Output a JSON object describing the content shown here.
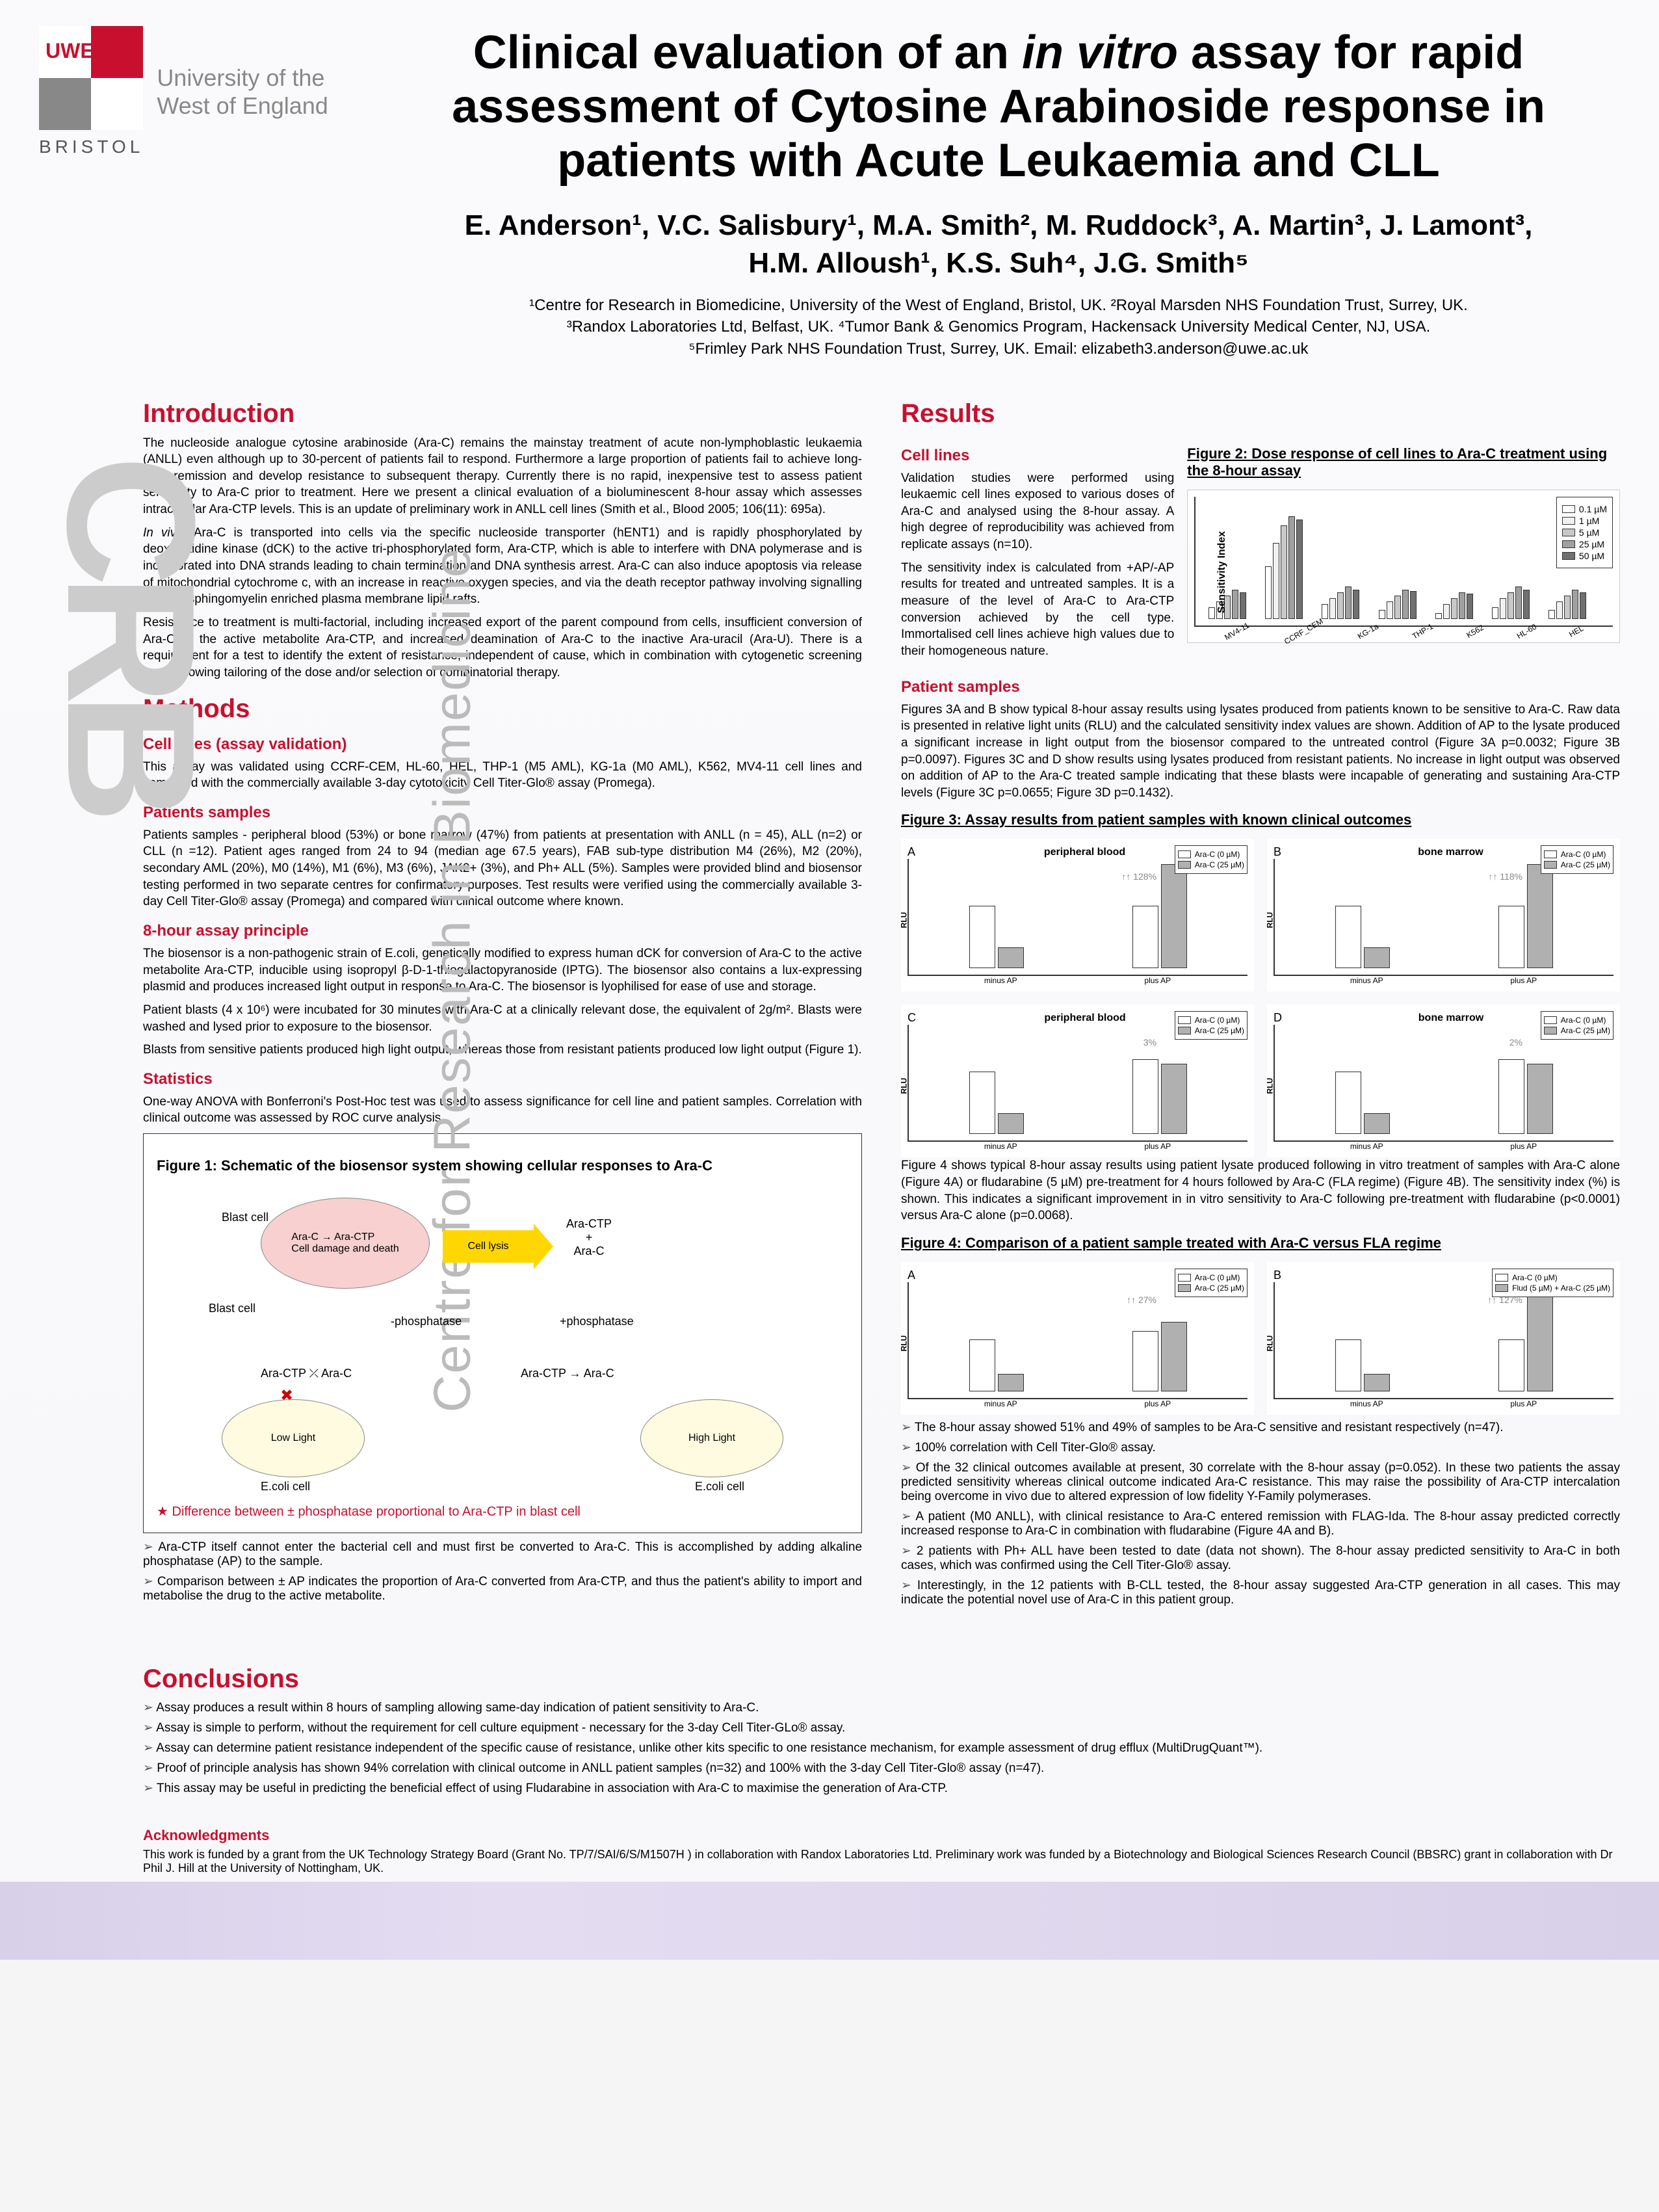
{
  "logo": {
    "uwe": "UWE",
    "bristol": "BRISTOL",
    "uni": "University of the\nWest of England"
  },
  "title_pre": "Clinical evaluation of an ",
  "title_italic": "in vitro",
  "title_post": " assay for rapid assessment of Cytosine Arabinoside response in patients with Acute Leukaemia and CLL",
  "authors_line1": "E. Anderson¹, V.C. Salisbury¹, M.A. Smith², M. Ruddock³, A. Martin³, J. Lamont³,",
  "authors_line2": "H.M. Alloush¹, K.S. Suh⁴, J.G. Smith⁵",
  "affiliations": "¹Centre for Research in Biomedicine, University of the West of England, Bristol, UK. ²Royal Marsden NHS Foundation Trust, Surrey, UK.\n³Randox Laboratories Ltd, Belfast, UK. ⁴Tumor Bank & Genomics Program, Hackensack University Medical Center, NJ, USA.\n⁵Frimley Park NHS Foundation Trust, Surrey, UK. Email: elizabeth3.anderson@uwe.ac.uk",
  "side_label": "Centre for Research in Biomedicine",
  "crb_label": "CRB",
  "sections": {
    "intro_title": "Introduction",
    "intro_p1": "The nucleoside analogue cytosine arabinoside (Ara-C) remains the mainstay treatment of acute non-lymphoblastic leukaemia (ANLL) even although up to 30-percent of patients fail to respond. Furthermore a large proportion of patients fail to achieve long-term remission and develop resistance to subsequent therapy. Currently there is no rapid, inexpensive test to assess patient sensitivity to Ara-C prior to treatment. Here we present a clinical evaluation of a bioluminescent 8-hour assay which assesses intracellular Ara-CTP levels. This is an update of preliminary work in ANLL cell lines (Smith et al., Blood 2005; 106(11): 695a).",
    "intro_p2_pre": "",
    "intro_p2_italic": "In vivo",
    "intro_p2_post": ", Ara-C is transported into cells via the specific nucleoside transporter (hENT1) and is rapidly phosphorylated by deoxycytidine kinase (dCK) to the active tri-phosphorylated form, Ara-CTP, which is able to interfere with DNA polymerase and is incorporated into DNA strands leading to chain termination and DNA synthesis arrest. Ara-C can also induce apoptosis via release of mitochondrial cytochrome c, with an increase in reactive oxygen species, and via the death receptor pathway involving signalling through sphingomyelin enriched plasma membrane lipid rafts.",
    "intro_p3": "Resistance to treatment is multi-factorial, including increased export of the parent compound from cells, insufficient conversion of Ara-C to the active metabolite Ara-CTP, and increased deamination of Ara-C to the inactive Ara-uracil (Ara-U). There is a requirement for a test to identify the extent of resistance, independent of cause, which in combination with cytogenetic screening could allowing tailoring of the dose and/or selection of combinatorial therapy.",
    "methods_title": "Methods",
    "methods_sub1": "Cell lines (assay validation)",
    "methods_p1": "This assay was validated using CCRF-CEM, HL-60, HEL, THP-1 (M5 AML), KG-1a (M0 AML), K562, MV4-11 cell lines and compared with the commercially available 3-day cytotoxicity Cell Titer-Glo® assay (Promega).",
    "methods_sub2": "Patients samples",
    "methods_p2": "Patients samples - peripheral blood (53%) or bone marrow (47%) from patients at presentation with ANLL (n = 45), ALL (n=2) or CLL (n =12). Patient ages ranged from 24 to 94 (median age 67.5 years), FAB sub-type distribution M4 (26%), M2 (20%), secondary AML (20%), M0 (14%), M1 (6%), M3 (6%), JAK2+ (3%), and Ph+ ALL (5%). Samples were provided blind and biosensor testing performed in two separate centres for confirmatory purposes. Test results were verified using the commercially available 3-day Cell Titer-Glo® assay (Promega) and compared with clinical outcome where known.",
    "methods_sub3": "8-hour assay principle",
    "methods_p3": "The biosensor is a non-pathogenic strain of E.coli, genetically modified to express human dCK for conversion of Ara-C to the active metabolite Ara-CTP, inducible using isopropyl β-D-1-thiogalactopyranoside (IPTG). The biosensor also contains a lux-expressing plasmid and produces increased light output in response to Ara-C. The biosensor is lyophilised for ease of use and storage.",
    "methods_p4": "Patient blasts (4 x 10⁶) were incubated for 30 minutes with Ara-C at a clinically relevant dose, the equivalent of 2g/m². Blasts were washed and lysed prior to exposure to the biosensor.",
    "methods_p5": "Blasts from sensitive patients produced high light output, whereas those from resistant patients produced low light output (Figure 1).",
    "methods_sub4": "Statistics",
    "methods_p6": "One-way ANOVA with Bonferroni's Post-Hoc test was used to assess significance for cell line and patient samples. Correlation with clinical outcome was assessed by ROC curve analysis.",
    "fig1_title": "Figure 1: Schematic of the biosensor system showing cellular responses to Ara-C",
    "fig1_blast": "Ara-C → Ara-CTP\nCell damage and death",
    "fig1_blast_label": "Blast cell",
    "fig1_lysis": "Cell lysis",
    "fig1_arac_ctp": "Ara-CTP\n+\nAra-C",
    "fig1_phos": "+phosphatase",
    "fig1_minusphos": "-phosphatase",
    "fig1_aractp_arac": "Ara-CTP ⤫ Ara-C",
    "fig1_aractp_arac2": "Ara-CTP → Ara-C",
    "fig1_low": "Low Light",
    "fig1_high": "High Light",
    "fig1_ecoli": "E.coli cell",
    "fig1_star": "Difference between ± phosphatase proportional to Ara-CTP in blast cell",
    "fig1_note1": "Ara-CTP itself cannot enter the bacterial cell and must first be converted to Ara-C. This is accomplished by adding alkaline phosphatase (AP) to the sample.",
    "fig1_note2": "Comparison between ± AP indicates the proportion of Ara-C converted from Ara-CTP, and thus the patient's ability to import and metabolise the drug to the active metabolite.",
    "results_title": "Results",
    "results_sub1": "Cell lines",
    "results_p1": "Validation studies were performed using leukaemic cell lines exposed to various doses of Ara-C and analysed using the 8-hour assay. A high degree of reproducibility was achieved from replicate assays (n=10).",
    "results_p2": "The sensitivity index is calculated from +AP/-AP results for treated and untreated samples. It is a measure of the level of Ara-C to Ara-CTP conversion achieved by the cell type. Immortalised cell lines achieve high values due to their homogeneous nature.",
    "fig2_title": "Figure 2: Dose response of cell lines to Ara-C treatment using the 8-hour assay",
    "fig2_ylabel": "Sensitivity Index",
    "fig2_ymax": 400,
    "fig2_ytick": 100,
    "fig2_x": [
      "MV4-11",
      "CCRF_CEM",
      "KG-1a",
      "THP-1",
      "K562",
      "HL-60",
      "HEL"
    ],
    "fig2_doses": [
      "0.1 µM",
      "1 µM",
      "5 µM",
      "25 µM",
      "50 µM"
    ],
    "fig2_colors": [
      "#ffffff",
      "#f0f0f0",
      "#c8c8c8",
      "#a0a0a0",
      "#707070"
    ],
    "fig2_data": [
      [
        40,
        60,
        80,
        100,
        90
      ],
      [
        180,
        260,
        320,
        350,
        340
      ],
      [
        50,
        70,
        90,
        110,
        100
      ],
      [
        30,
        60,
        80,
        100,
        95
      ],
      [
        20,
        50,
        70,
        90,
        85
      ],
      [
        40,
        70,
        90,
        110,
        100
      ],
      [
        30,
        60,
        80,
        100,
        90
      ]
    ],
    "results_sub2": "Patient samples",
    "results_p3": "Figures 3A and B show typical 8-hour assay results using lysates produced from patients known to be sensitive to Ara-C. Raw data is presented in relative light units (RLU) and the calculated sensitivity index values are shown. Addition of AP to the lysate produced a significant increase in light output from the biosensor compared to the untreated control (Figure 3A p=0.0032; Figure 3B p=0.0097). Figures 3C and D show results using lysates produced from resistant patients. No increase in light output was observed on addition of AP to the Ara-C treated sample indicating that these blasts were incapable of generating and sustaining Ara-CTP levels (Figure 3C p=0.0655; Figure 3D p=0.1432).",
    "fig3_title": "Figure 3: Assay  results from patient  samples with known clinical outcomes",
    "fig3_panels": [
      {
        "letter": "A",
        "title": "peripheral blood",
        "pct": "↑↑ 128%",
        "legend": [
          "Ara-C (0 µM)",
          "Ara-C (25 µM)"
        ],
        "bars": [
          [
            15000,
            5000
          ],
          [
            15000,
            25000
          ]
        ],
        "ymax": 25000,
        "xlabels": [
          "minus AP",
          "plus AP"
        ]
      },
      {
        "letter": "B",
        "title": "bone marrow",
        "pct": "↑↑ 118%",
        "legend": [
          "Ara-C (0 µM)",
          "Ara-C (25 µM)"
        ],
        "bars": [
          [
            15000,
            5000
          ],
          [
            15000,
            25000
          ]
        ],
        "ymax": 25000,
        "xlabels": [
          "minus AP",
          "plus AP"
        ]
      },
      {
        "letter": "C",
        "title": "peripheral blood",
        "pct": "3%",
        "legend": [
          "Ara-C (0 µM)",
          "Ara-C (25 µM)"
        ],
        "bars": [
          [
            15000,
            5000
          ],
          [
            18000,
            17000
          ]
        ],
        "ymax": 25000,
        "xlabels": [
          "minus AP",
          "plus AP"
        ]
      },
      {
        "letter": "D",
        "title": "bone marrow",
        "pct": "2%",
        "legend": [
          "Ara-C (0 µM)",
          "Ara-C (25 µM)"
        ],
        "bars": [
          [
            15000,
            5000
          ],
          [
            18000,
            17000
          ]
        ],
        "ymax": 25000,
        "xlabels": [
          "minus AP",
          "plus AP"
        ]
      }
    ],
    "fig3_ylabel": "RLU",
    "fig3_colors": [
      "#ffffff",
      "#b0b0b0"
    ],
    "results_p4": "Figure 4 shows typical 8-hour assay results using patient lysate produced following in vitro treatment of samples with Ara-C alone (Figure 4A) or fludarabine (5 µM) pre-treatment for 4 hours followed by Ara-C (FLA regime) (Figure 4B). The sensitivity index (%) is shown. This indicates a significant improvement in in vitro sensitivity to Ara-C following pre-treatment with fludarabine (p<0.0001) versus Ara-C alone (p=0.0068).",
    "fig4_title": "Figure 4: Comparison of a patient sample treated with Ara-C versus FLA regime",
    "fig4_panels": [
      {
        "letter": "A",
        "pct": "↑↑ 27%",
        "legend": [
          "Ara-C (0 µM)",
          "Ara-C (25 µM)"
        ],
        "bars": [
          [
            30000,
            10000
          ],
          [
            35000,
            40000
          ]
        ],
        "ymax": 60000,
        "xlabels": [
          "minus AP",
          "plus AP"
        ]
      },
      {
        "letter": "B",
        "pct": "↑↑ 127%",
        "legend": [
          "Ara-C (0 µM)",
          "Flud (5 µM) + Ara-C (25 µM)"
        ],
        "bars": [
          [
            30000,
            10000
          ],
          [
            30000,
            55000
          ]
        ],
        "ymax": 60000,
        "xlabels": [
          "minus AP",
          "plus AP"
        ]
      }
    ],
    "results_bullets": [
      "The 8-hour assay showed 51% and 49% of samples to be Ara-C sensitive and resistant respectively (n=47).",
      "100% correlation with Cell Titer-Glo® assay.",
      "Of the 32 clinical outcomes available at present, 30 correlate with the 8-hour assay (p=0.052). In these two patients the assay predicted sensitivity whereas clinical outcome indicated Ara-C resistance. This may raise the possibility of Ara-CTP intercalation being overcome in vivo due to altered expression of low fidelity Y-Family polymerases.",
      "A patient (M0 ANLL), with clinical resistance to Ara-C entered remission with FLAG-Ida. The 8-hour assay predicted correctly increased response to Ara-C in combination with fludarabine (Figure 4A and B).",
      "2 patients with Ph+ ALL have been tested to date (data not shown). The 8-hour assay predicted sensitivity to Ara-C in both cases, which was confirmed using the Cell Titer-Glo® assay.",
      "Interestingly, in the 12 patients with B-CLL tested, the 8-hour assay suggested Ara-CTP generation in all cases. This may indicate the potential novel use of Ara-C in this patient group."
    ],
    "conclusions_title": "Conclusions",
    "conclusions_bullets": [
      "Assay produces a result within 8 hours of sampling allowing same-day indication of patient sensitivity to Ara-C.",
      "Assay is simple to perform, without the requirement for cell culture equipment - necessary for the 3-day Cell Titer-GLo® assay.",
      "Assay can determine patient resistance independent of the specific cause of resistance, unlike other kits specific to one resistance mechanism, for example assessment of drug efflux (MultiDrugQuant™).",
      "Proof of principle analysis has shown 94% correlation with clinical outcome in ANLL patient samples (n=32) and 100% with the 3-day Cell Titer-Glo® assay (n=47).",
      "This assay may be useful in predicting the beneficial effect of using Fludarabine in association with Ara-C to maximise the generation of Ara-CTP."
    ],
    "ack_title": "Acknowledgments",
    "ack_text": "This work is funded by a grant from the UK Technology Strategy Board (Grant No. TP/7/SAI/6/S/M1507H ) in collaboration with Randox Laboratories Ltd. Preliminary work was funded by a Biotechnology and Biological Sciences Research Council (BBSRC) grant in collaboration with Dr Phil J. Hill at the University of Nottingham, UK."
  }
}
